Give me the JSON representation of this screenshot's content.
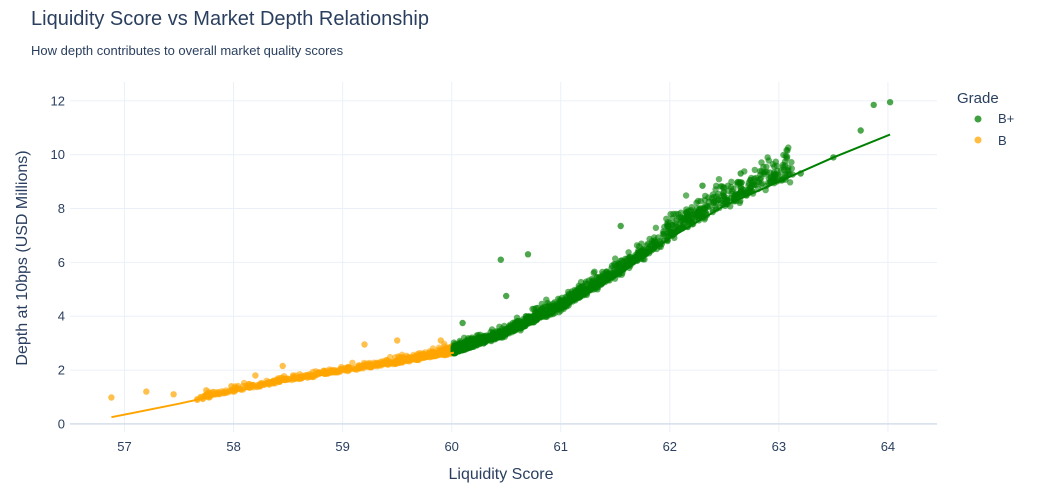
{
  "chart_data": {
    "type": "scatter",
    "title": "Liquidity Score vs Market Depth Relationship",
    "subtitle": "How depth contributes to overall market quality scores",
    "xlabel": "Liquidity Score",
    "ylabel": "Depth at 10bps (USD Millions)",
    "xlim": [
      56.5,
      64.45
    ],
    "ylim": [
      -0.3,
      12.7
    ],
    "x_ticks": [
      57,
      58,
      59,
      60,
      61,
      62,
      63,
      64
    ],
    "y_ticks": [
      0,
      2,
      4,
      6,
      8,
      10,
      12
    ],
    "grid": true,
    "legend": {
      "title": "Grade",
      "placement": "top-right"
    },
    "series": [
      {
        "name": "B+",
        "color": "#008000",
        "x_range": [
          60.02,
          64.02
        ],
        "notable_points": [
          [
            64.02,
            11.95
          ],
          [
            63.87,
            11.85
          ],
          [
            63.75,
            10.9
          ],
          [
            63.5,
            9.9
          ],
          [
            63.2,
            9.3
          ],
          [
            62.65,
            9.3
          ],
          [
            62.3,
            8.85
          ],
          [
            61.55,
            7.35
          ],
          [
            60.7,
            6.3
          ],
          [
            60.45,
            6.1
          ],
          [
            60.5,
            4.75
          ],
          [
            60.1,
            3.75
          ]
        ],
        "trend": [
          [
            60.02,
            2.65
          ],
          [
            60.5,
            3.3
          ],
          [
            61.0,
            4.25
          ],
          [
            61.5,
            5.45
          ],
          [
            62.0,
            6.9
          ],
          [
            62.5,
            8.1
          ],
          [
            63.0,
            9.0
          ],
          [
            63.5,
            9.9
          ],
          [
            64.02,
            10.75
          ]
        ]
      },
      {
        "name": "B",
        "color": "#FFA500",
        "x_range": [
          56.88,
          60.02
        ],
        "notable_points": [
          [
            56.88,
            0.98
          ],
          [
            57.2,
            1.2
          ],
          [
            57.45,
            1.1
          ],
          [
            57.75,
            1.25
          ],
          [
            57.98,
            1.4
          ],
          [
            58.2,
            1.8
          ],
          [
            58.45,
            2.15
          ],
          [
            59.2,
            2.95
          ],
          [
            59.5,
            3.1
          ],
          [
            59.9,
            3.1
          ]
        ],
        "trend": [
          [
            56.88,
            0.25
          ],
          [
            57.5,
            0.75
          ],
          [
            58.0,
            1.2
          ],
          [
            58.5,
            1.6
          ],
          [
            59.0,
            1.95
          ],
          [
            59.5,
            2.25
          ],
          [
            60.02,
            2.65
          ]
        ]
      }
    ]
  }
}
